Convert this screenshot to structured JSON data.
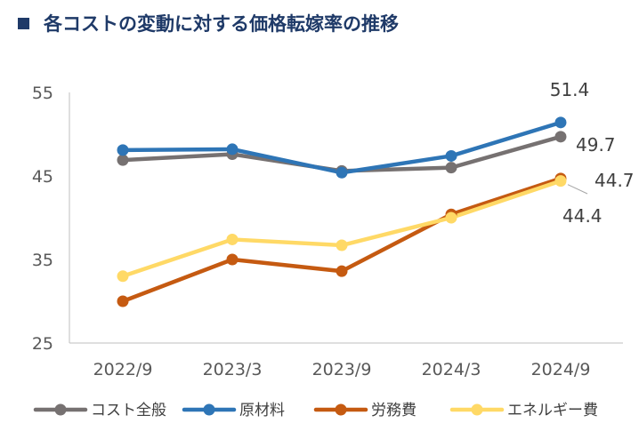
{
  "title": "各コストの変動に対する価格転嫁率の推移",
  "chart_data": {
    "type": "line",
    "title": "各コストの変動に対する価格転嫁率の推移",
    "categories": [
      "2022/9",
      "2023/3",
      "2023/9",
      "2024/3",
      "2024/9"
    ],
    "ylim": [
      25,
      55
    ],
    "yticks": [
      25,
      35,
      45,
      55
    ],
    "grid": false,
    "legend_position": "bottom",
    "series": [
      {
        "name": "コスト全般",
        "color": "#767171",
        "values": [
          46.9,
          47.6,
          45.6,
          46.0,
          49.7
        ]
      },
      {
        "name": "原材料",
        "color": "#2e75b6",
        "values": [
          48.1,
          48.2,
          45.4,
          47.4,
          51.4
        ]
      },
      {
        "name": "労務費",
        "color": "#c55a11",
        "values": [
          30.0,
          35.0,
          33.6,
          40.4,
          44.7
        ]
      },
      {
        "name": "エネルギー費",
        "color": "#ffd966",
        "values": [
          33.0,
          37.4,
          36.7,
          40.0,
          44.4
        ]
      }
    ],
    "data_labels": [
      "51.4",
      "49.7",
      "44.7",
      "44.4"
    ]
  }
}
